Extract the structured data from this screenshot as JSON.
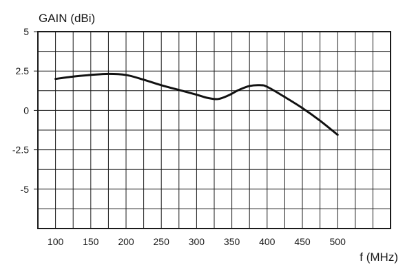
{
  "chart_data": {
    "type": "line",
    "ylabel": "GAIN (dBi)",
    "xlabel": "f (MHz)",
    "xlim": [
      75,
      575
    ],
    "ylim": [
      -7.5,
      5
    ],
    "xticks": [
      100,
      150,
      200,
      250,
      300,
      350,
      400,
      450,
      500
    ],
    "xtick_labels": [
      "100",
      "150",
      "200",
      "250",
      "300",
      "350",
      "400",
      "450",
      "500"
    ],
    "yticks": [
      5,
      2.5,
      0,
      -2.5,
      -5
    ],
    "ytick_labels": [
      "5",
      "2.5",
      "0",
      "-2.5",
      "-5"
    ],
    "grid": true,
    "series": [
      {
        "x": [
          100,
          125,
          150,
          175,
          200,
          225,
          250,
          275,
          300,
          315,
          330,
          345,
          360,
          375,
          390,
          400,
          425,
          450,
          475,
          500
        ],
        "values": [
          2.0,
          2.15,
          2.25,
          2.32,
          2.25,
          1.95,
          1.6,
          1.3,
          1.0,
          0.8,
          0.72,
          0.95,
          1.3,
          1.55,
          1.6,
          1.5,
          0.85,
          0.15,
          -0.65,
          -1.55
        ]
      }
    ]
  }
}
